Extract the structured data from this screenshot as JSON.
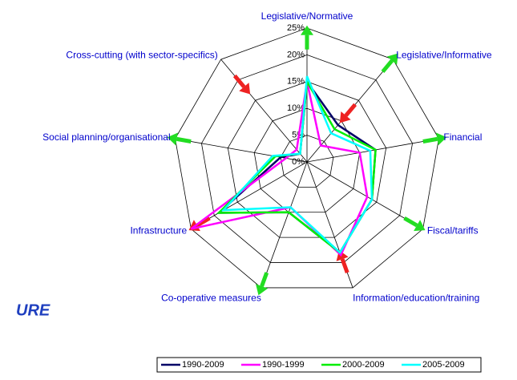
{
  "chart_data": {
    "type": "radar",
    "categories": [
      "Legislative/Normative",
      "Legislative/Informative",
      "Financial",
      "Fiscal/tariffs",
      "Information/education/training",
      "Co-operative measures",
      "Infrastructure",
      "Social planning/organisational",
      "Cross-cutting (with sector-specifics)"
    ],
    "series": [
      {
        "name": "1990-2009",
        "color": "#000066",
        "values": [
          15,
          9,
          13,
          14,
          18,
          10,
          19,
          5,
          2
        ]
      },
      {
        "name": "1990-1999",
        "color": "#ff00ff",
        "values": [
          15,
          4,
          10,
          13,
          18.5,
          9,
          25,
          4,
          3
        ]
      },
      {
        "name": "2000-2009",
        "color": "#00ee00",
        "values": [
          15,
          8,
          13,
          14,
          18,
          10,
          19,
          6,
          2
        ]
      },
      {
        "name": "2005-2009",
        "color": "#00ffff",
        "values": [
          16,
          7,
          12,
          14,
          18,
          9,
          18,
          6.5,
          2
        ]
      }
    ],
    "rlim": [
      0,
      25
    ],
    "rticks": [
      {
        "value": 0,
        "label": "0%"
      },
      {
        "value": 5,
        "label": "5%"
      },
      {
        "value": 10,
        "label": "10%"
      },
      {
        "value": 15,
        "label": "15%"
      },
      {
        "value": 20,
        "label": "20%"
      },
      {
        "value": 25,
        "label": "25%"
      }
    ],
    "grid": true,
    "partial_text": "URE"
  }
}
